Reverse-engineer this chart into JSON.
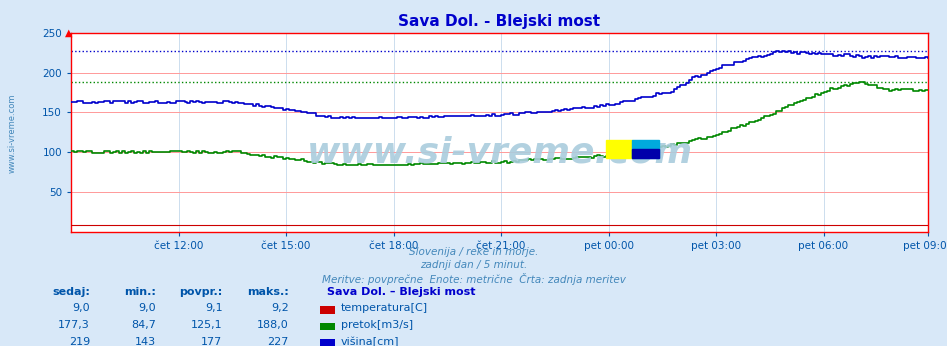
{
  "title": "Sava Dol. - Blejski most",
  "title_color": "#0000cc",
  "bg_color": "#d8e8f8",
  "plot_bg_color": "#ffffff",
  "grid_color_h": "#ff9999",
  "grid_color_v": "#ccddee",
  "axis_color": "#ff0000",
  "tick_color": "#0055aa",
  "subtitle_lines": [
    "Slovenija / reke in morje.",
    "zadnji dan / 5 minut.",
    "Meritve: povprečne  Enote: metrične  Črta: zadnja meritev"
  ],
  "subtitle_color": "#4488bb",
  "xtick_labels": [
    "čet 12:00",
    "čet 15:00",
    "čet 18:00",
    "čet 21:00",
    "pet 00:00",
    "pet 03:00",
    "pet 06:00",
    "pet 09:00"
  ],
  "xtick_positions": [
    36,
    72,
    108,
    144,
    180,
    216,
    252,
    287
  ],
  "ylim": [
    0,
    250
  ],
  "yticks": [
    50,
    100,
    150,
    200,
    250
  ],
  "watermark": "www.si-vreme.com",
  "watermark_color": "#aaccdd",
  "left_label": "www.si-vreme.com",
  "left_label_color": "#4488bb",
  "table_headers": [
    "sedaj:",
    "min.:",
    "povpr.:",
    "maks.:"
  ],
  "table_header_color": "#0055aa",
  "table_station": "Sava Dol. – Blejski most",
  "table_station_color": "#0000cc",
  "series": [
    {
      "name": "temperatura[C]",
      "color": "#cc0000",
      "sedaj": "9,0",
      "min": "9,0",
      "povpr": "9,1",
      "maks": "9,2"
    },
    {
      "name": "pretok[m3/s]",
      "color": "#008800",
      "sedaj": "177,3",
      "min": "84,7",
      "povpr": "125,1",
      "maks": "188,0"
    },
    {
      "name": "višina[cm]",
      "color": "#0000cc",
      "sedaj": "219",
      "min": "143",
      "povpr": "177",
      "maks": "227"
    }
  ],
  "max_line_pretok": 188.0,
  "max_line_visina": 227,
  "n_points": 288
}
